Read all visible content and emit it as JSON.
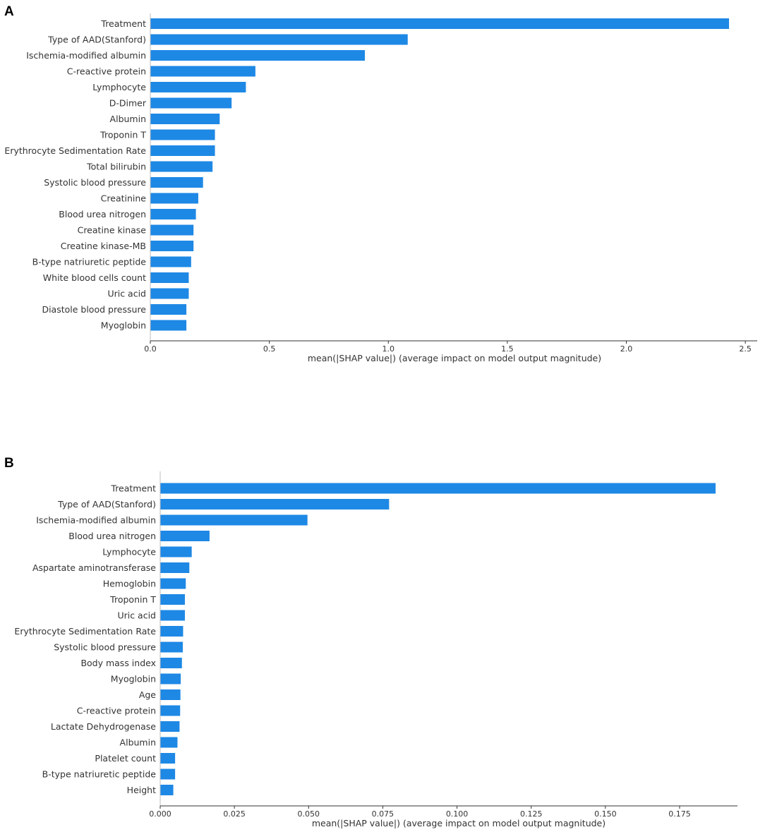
{
  "chart_data": [
    {
      "type": "bar",
      "orientation": "horizontal",
      "panel_label": "A",
      "bar_color": "#1E88E5",
      "categories": [
        "Treatment",
        "Type of AAD(Stanford)",
        "Ischemia-modified albumin",
        "C-reactive protein",
        "Lymphocyte",
        "D-Dimer",
        "Albumin",
        "Troponin T",
        "Erythrocyte Sedimentation Rate",
        "Total bilirubin",
        "Systolic blood pressure",
        "Creatinine",
        "Blood urea nitrogen",
        "Creatine kinase",
        "Creatine kinase-MB",
        "B-type natriuretic peptide",
        "White blood cells count",
        "Uric acid",
        "Diastole blood pressure",
        "Myoglobin"
      ],
      "values": [
        2.43,
        1.08,
        0.9,
        0.44,
        0.4,
        0.34,
        0.29,
        0.27,
        0.27,
        0.26,
        0.22,
        0.2,
        0.19,
        0.18,
        0.18,
        0.17,
        0.16,
        0.16,
        0.15,
        0.15
      ],
      "xlabel": "mean(|SHAP value|) (average impact on model output magnitude)",
      "ylabel": "",
      "xlim": [
        0,
        2.55
      ],
      "xticks": [
        0.0,
        0.5,
        1.0,
        1.5,
        2.0,
        2.5
      ],
      "xtick_labels": [
        "0.0",
        "0.5",
        "1.0",
        "1.5",
        "2.0",
        "2.5"
      ]
    },
    {
      "type": "bar",
      "orientation": "horizontal",
      "panel_label": "B",
      "bar_color": "#1E88E5",
      "categories": [
        "Treatment",
        "Type of AAD(Stanford)",
        "Ischemia-modified albumin",
        "Blood urea nitrogen",
        "Lymphocyte",
        "Aspartate aminotransferase",
        "Hemoglobin",
        "Troponin T",
        "Uric acid",
        "Erythrocyte Sedimentation Rate",
        "Systolic blood pressure",
        "Body mass index",
        "Myoglobin",
        "Age",
        "C-reactive protein",
        "Lactate Dehydrogenase",
        "Albumin",
        "Platelet count",
        "B-type natriuretic peptide",
        "Height"
      ],
      "values": [
        0.187,
        0.077,
        0.0495,
        0.0165,
        0.0105,
        0.0097,
        0.0085,
        0.0082,
        0.0082,
        0.0076,
        0.0075,
        0.0072,
        0.0068,
        0.0067,
        0.0066,
        0.0064,
        0.0057,
        0.0049,
        0.0049,
        0.0043
      ],
      "xlabel": "mean(|SHAP value|) (average impact on model output magnitude)",
      "ylabel": "",
      "xlim": [
        0,
        0.1945
      ],
      "xticks": [
        0.0,
        0.025,
        0.05,
        0.075,
        0.1,
        0.125,
        0.15,
        0.175
      ],
      "xtick_labels": [
        "0.000",
        "0.025",
        "0.050",
        "0.075",
        "0.100",
        "0.125",
        "0.150",
        "0.175"
      ]
    }
  ]
}
